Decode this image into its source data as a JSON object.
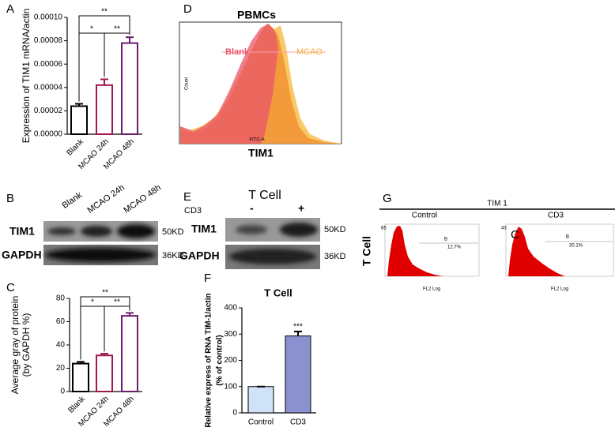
{
  "chart_data": [
    {
      "type": "bar",
      "panel_label": "A",
      "y_label": [
        "Expression of TIM1 mRNA/actin"
      ],
      "categories": [
        "Blank",
        "MCAO 24h",
        "MCAO 48h"
      ],
      "values": [
        2.4e-05,
        4.2e-05,
        7.8e-05
      ],
      "errors": [
        2e-06,
        5e-06,
        5e-06
      ],
      "colors": [
        "#000000",
        "#a0184e",
        "#6b1a6e"
      ],
      "filled": false,
      "ylim": [
        0,
        0.0001
      ],
      "yticks": [
        {
          "value": 0,
          "label": "0.00000"
        },
        {
          "value": 2e-05,
          "label": "0.00002"
        },
        {
          "value": 4e-05,
          "label": "0.00004"
        },
        {
          "value": 6e-05,
          "label": "0.00006"
        },
        {
          "value": 8e-05,
          "label": "0.00008"
        },
        {
          "value": 0.0001,
          "label": "0.00010"
        }
      ],
      "annotations": [
        "**",
        "*",
        "**"
      ]
    },
    {
      "type": "bar",
      "panel_label": "C",
      "y_label": [
        "Average gray of protein",
        "(by GAPDH %)"
      ],
      "categories": [
        "Blank",
        "MCAO 24h",
        "MCAO 48h"
      ],
      "values": [
        24,
        31,
        65
      ],
      "errors": [
        1.5,
        1.5,
        2.5
      ],
      "colors": [
        "#000000",
        "#a0184e",
        "#6b1a6e"
      ],
      "filled": false,
      "ylim": [
        0,
        80
      ],
      "yticks": [
        0,
        20,
        40,
        60,
        80
      ],
      "annotations": [
        "**",
        "*",
        "**"
      ]
    },
    {
      "type": "bar",
      "panel_label": "F",
      "title": "T Cell",
      "y_label": [
        "Relative express of RNA TIM-1/actin",
        "(% of control)"
      ],
      "categories": [
        "Control",
        "CD3"
      ],
      "values": [
        100,
        293
      ],
      "errors": [
        0,
        17
      ],
      "colors": [
        "#cfe2f6",
        "#8b90cf"
      ],
      "filled": true,
      "ylim": [
        0,
        400
      ],
      "yticks": [
        0,
        100,
        200,
        300,
        400
      ],
      "annotations": [
        "***"
      ]
    }
  ],
  "panel_b": {
    "label": "B",
    "lanes": [
      "Blank",
      "MCAO 24h",
      "MCAO 48h"
    ],
    "rows": [
      "TIM1",
      "GAPDH"
    ],
    "sizes": [
      "50KD",
      "36KD"
    ]
  },
  "panel_d": {
    "label": "D",
    "title": "PBMCs",
    "legend": [
      "Blank",
      "MCAO"
    ],
    "y_label": "Count",
    "x_label": "FITC-A",
    "marker": "TIM1"
  },
  "panel_e": {
    "label": "E",
    "title": "T Cell",
    "treatment": "CD3",
    "conditions": [
      "-",
      "+"
    ],
    "rows": [
      "TIM1",
      "GAPDH"
    ],
    "sizes": [
      "50KD",
      "36KD"
    ]
  },
  "panel_g": {
    "label": "G",
    "title": "TIM 1",
    "columns": [
      "Control",
      "CD3"
    ],
    "row_label": "T Cell",
    "plots": [
      {
        "max": "65",
        "gate": "B",
        "percent": "12.7%",
        "x_label": "FL2 Log"
      },
      {
        "max": "43",
        "gate": "B",
        "percent": "30.1%",
        "x_label": "FL2 Log",
        "tag": "C"
      }
    ]
  }
}
